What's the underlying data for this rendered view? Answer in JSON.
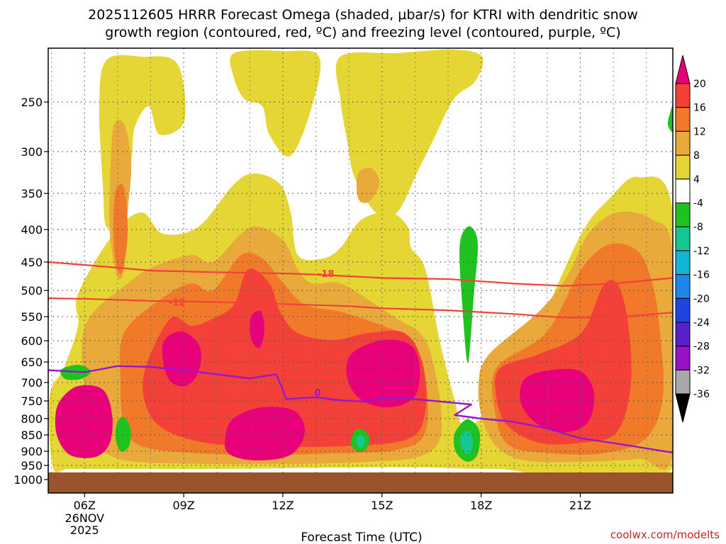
{
  "title_line1": "2025112605 HRRR Forecast Omega (shaded, μbar/s) for KTRI with dendritic snow",
  "title_line2": "growth region (contoured, red, ºC) and freezing level (contoured, purple, ºC)",
  "x_axis_label": "Forecast Time (UTC)",
  "watermark": "coolwx.com/modelts",
  "chart_data": {
    "type": "heatmap",
    "title": "2025112605 HRRR Forecast Omega (shaded, μbar/s) for KTRI with dendritic snow growth region (contoured, red, ºC) and freezing level (contoured, purple, ºC)",
    "xlabel": "Forecast Time (UTC)",
    "ylabel": "",
    "x_range_hours_utc": [
      4.9,
      23.8
    ],
    "x_ticks": [
      {
        "hour": 6,
        "label": "06Z",
        "sublabel": [
          "26NOV",
          "2025"
        ]
      },
      {
        "hour": 9,
        "label": "09Z"
      },
      {
        "hour": 12,
        "label": "12Z"
      },
      {
        "hour": 15,
        "label": "15Z"
      },
      {
        "hour": 18,
        "label": "18Z"
      },
      {
        "hour": 21,
        "label": "21Z"
      }
    ],
    "y_scale": "pressure (hPa), increasing downward",
    "y_range_hpa": [
      200,
      1050
    ],
    "y_ticks": [
      250,
      300,
      350,
      400,
      450,
      500,
      550,
      600,
      650,
      700,
      750,
      800,
      850,
      900,
      950,
      1000
    ],
    "grid": true,
    "colorbar": {
      "levels": [
        20,
        16,
        12,
        8,
        4,
        -4,
        -8,
        -12,
        -16,
        -20,
        -24,
        -28,
        -32,
        -36
      ],
      "colors": [
        "#e8007a",
        "#f3413a",
        "#f17a2a",
        "#e9a93b",
        "#e6d635",
        "#ffffff",
        "#1fc21f",
        "#16c792",
        "#13b5d6",
        "#1d88e8",
        "#1f45e0",
        "#5a1fc8",
        "#9910c5",
        "#a7a7a7",
        "#000000"
      ],
      "extends": "both"
    },
    "surface_color": "#9a532d",
    "omega_fill_colors": {
      "4-8": "#e6d635",
      "8-12": "#e9a93b",
      "12-16": "#f17a2a",
      "16-20": "#f3413a",
      "gt20": "#e8007a",
      "neg4-8": "#1fc21f",
      "neg8-12": "#16c792"
    },
    "dgz_contours": [
      {
        "label": "-18",
        "color": "#f3413a",
        "points": [
          [
            4.9,
            450
          ],
          [
            6,
            455
          ],
          [
            8,
            465
          ],
          [
            10,
            468
          ],
          [
            12,
            470
          ],
          [
            13,
            472
          ],
          [
            15,
            478
          ],
          [
            17,
            480
          ],
          [
            19,
            488
          ],
          [
            20.5,
            492
          ],
          [
            22,
            488
          ],
          [
            23.8,
            478
          ]
        ]
      },
      {
        "label": "-12",
        "color": "#f3413a",
        "points": [
          [
            4.9,
            515
          ],
          [
            6,
            516
          ],
          [
            8,
            520
          ],
          [
            10,
            522
          ],
          [
            12,
            526
          ],
          [
            14,
            530
          ],
          [
            15,
            534
          ],
          [
            17,
            538
          ],
          [
            19,
            545
          ],
          [
            20.5,
            552
          ],
          [
            22,
            552
          ],
          [
            23.8,
            542
          ]
        ]
      }
    ],
    "freezing_level": {
      "label": "0",
      "color": "#9b16c9",
      "points": [
        [
          4.9,
          670
        ],
        [
          6,
          675
        ],
        [
          7,
          660
        ],
        [
          8,
          662
        ],
        [
          9,
          670
        ],
        [
          10,
          680
        ],
        [
          11,
          690
        ],
        [
          11.8,
          680
        ],
        [
          12,
          720
        ],
        [
          12.1,
          745
        ],
        [
          13,
          740
        ],
        [
          13.7,
          748
        ],
        [
          14.5,
          752
        ],
        [
          15,
          742
        ],
        [
          16,
          745
        ],
        [
          17.7,
          760
        ],
        [
          17.2,
          790
        ],
        [
          18,
          800
        ],
        [
          19,
          810
        ],
        [
          20,
          830
        ],
        [
          21,
          860
        ],
        [
          22,
          875
        ],
        [
          23.8,
          905
        ]
      ]
    }
  }
}
